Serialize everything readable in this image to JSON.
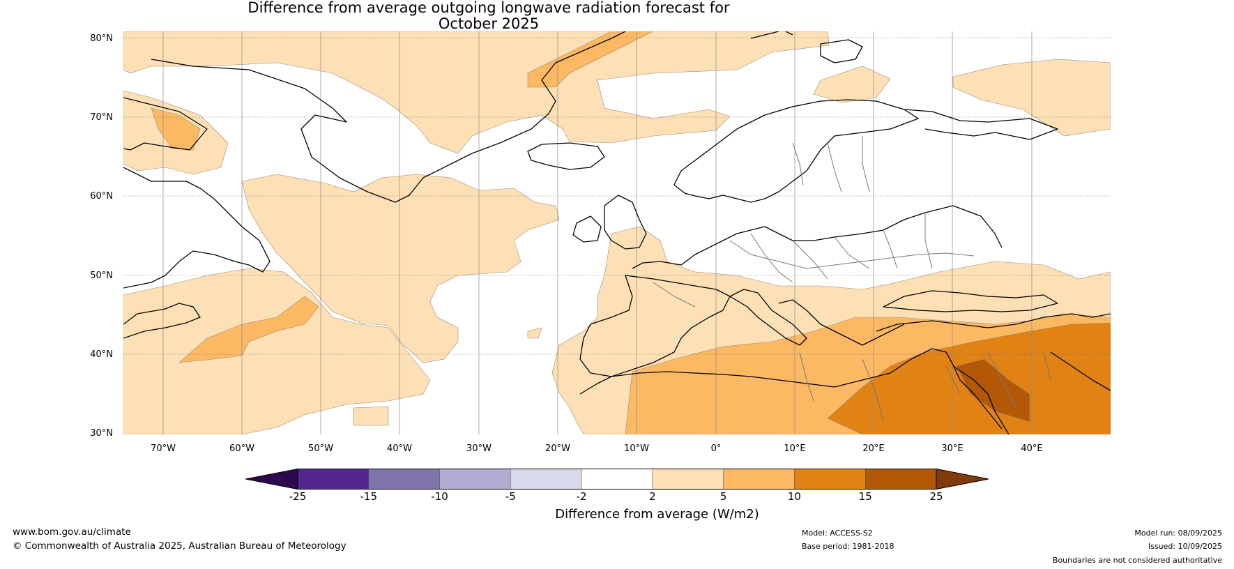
{
  "title": {
    "line1": "Difference from average outgoing longwave radiation forecast for",
    "line2": "October 2025"
  },
  "map": {
    "projection": "Plate Carree (lon 75°W–50°E, lat 30°N–81°N)",
    "lat_labels": [
      "80°N",
      "70°N",
      "60°N",
      "50°N",
      "40°N",
      "30°N"
    ],
    "lon_labels": [
      "70°W",
      "60°W",
      "50°W",
      "40°W",
      "30°W",
      "20°W",
      "10°W",
      "0°",
      "10°E",
      "20°E",
      "30°E",
      "40°E"
    ],
    "regions": [
      {
        "name": "greenland-sea-positive",
        "band": "2 to 5"
      },
      {
        "name": "labrador-sea-positive",
        "band": "5 to 10"
      },
      {
        "name": "mediterranean-positive",
        "band": "5 to 10"
      },
      {
        "name": "middle-east-positive",
        "band": "10 to 15"
      },
      {
        "name": "mesopotamia-positive",
        "band": "15 to 25"
      }
    ],
    "grid": true
  },
  "colorbar": {
    "ticks": [
      "-25",
      "-15",
      "-10",
      "-5",
      "-2",
      "2",
      "5",
      "10",
      "15",
      "25"
    ],
    "colors": {
      "below_-25": "#2d0a4e",
      "-25_-15": "#54278f",
      "-15_-10": "#8073ac",
      "-10_-5": "#b2abd2",
      "-5_-2": "#d8daeb",
      "-2_2": "#ffffff",
      "2_5": "#fee0b6",
      "5_10": "#fdb863",
      "10_15": "#e08214",
      "15_25": "#b35806",
      "above_25": "#7f3b08"
    },
    "label": "Difference from average (W/m2)"
  },
  "footer": {
    "website": "www.bom.gov.au/climate",
    "copyright": "© Commonwealth of Australia 2025, Australian Bureau of Meteorology",
    "model": "Model: ACCESS-S2",
    "base_period": "Base period: 1981-2018",
    "model_run": "Model run: 08/09/2025",
    "issued": "Issued: 10/09/2025",
    "disclaimer": "Boundaries are not considered authoritative"
  }
}
